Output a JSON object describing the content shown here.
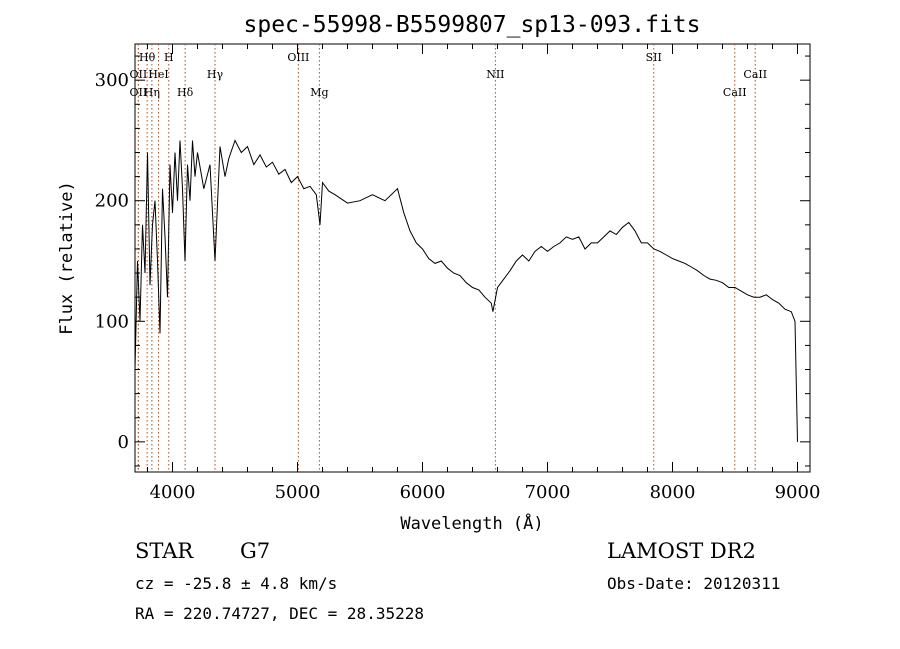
{
  "chart_data": {
    "type": "line",
    "title": "spec-55998-B5599807_sp13-093.fits",
    "xlabel": "Wavelength (Å)",
    "ylabel": "Flux (relative)",
    "xlim": [
      3700,
      9100
    ],
    "ylim": [
      -25,
      330
    ],
    "x_ticks": [
      4000,
      5000,
      6000,
      7000,
      8000,
      9000
    ],
    "y_ticks": [
      0,
      100,
      200,
      300
    ],
    "grid": false,
    "line_color": "#000000",
    "marker_color": "#a0522d",
    "series": [
      {
        "x": [
          3700,
          3720,
          3740,
          3760,
          3780,
          3800,
          3820,
          3840,
          3860,
          3880,
          3900,
          3920,
          3940,
          3960,
          3980,
          4000,
          4020,
          4040,
          4060,
          4080,
          4100,
          4120,
          4140,
          4160,
          4180,
          4200,
          4250,
          4300,
          4340,
          4380,
          4420,
          4450,
          4500,
          4550,
          4600,
          4650,
          4700,
          4750,
          4800,
          4850,
          4900,
          4950,
          5000,
          5050,
          5100,
          5150,
          5180,
          5200,
          5250,
          5300,
          5400,
          5500,
          5600,
          5700,
          5800,
          5850,
          5900,
          5950,
          6000,
          6050,
          6100,
          6150,
          6200,
          6250,
          6300,
          6350,
          6400,
          6450,
          6500,
          6550,
          6563,
          6600,
          6650,
          6700,
          6750,
          6800,
          6850,
          6900,
          6950,
          7000,
          7050,
          7100,
          7150,
          7200,
          7250,
          7300,
          7350,
          7400,
          7450,
          7500,
          7550,
          7600,
          7650,
          7700,
          7750,
          7800,
          7850,
          7900,
          7950,
          8000,
          8050,
          8100,
          8150,
          8200,
          8250,
          8300,
          8350,
          8400,
          8450,
          8500,
          8550,
          8600,
          8650,
          8700,
          8750,
          8800,
          8850,
          8900,
          8950,
          8980,
          9000
        ],
        "y": [
          60,
          150,
          100,
          180,
          140,
          240,
          130,
          180,
          200,
          150,
          90,
          210,
          170,
          120,
          230,
          190,
          240,
          200,
          250,
          210,
          150,
          230,
          200,
          250,
          220,
          240,
          210,
          230,
          150,
          245,
          220,
          235,
          250,
          240,
          245,
          230,
          238,
          228,
          232,
          222,
          226,
          215,
          220,
          210,
          212,
          205,
          180,
          215,
          208,
          205,
          198,
          200,
          205,
          200,
          210,
          190,
          175,
          165,
          160,
          152,
          148,
          150,
          144,
          140,
          138,
          132,
          128,
          126,
          120,
          115,
          108,
          128,
          135,
          142,
          150,
          155,
          150,
          158,
          162,
          158,
          162,
          165,
          170,
          168,
          170,
          160,
          165,
          165,
          170,
          175,
          172,
          178,
          182,
          175,
          165,
          165,
          160,
          158,
          155,
          152,
          150,
          148,
          145,
          142,
          138,
          135,
          134,
          132,
          128,
          128,
          125,
          122,
          120,
          120,
          122,
          118,
          115,
          110,
          108,
          100,
          0
        ]
      }
    ],
    "line_markers": [
      {
        "label": "Hθ",
        "x": 3797,
        "row": 1
      },
      {
        "label": "H",
        "x": 3970,
        "row": 1
      },
      {
        "label": "OII",
        "x": 3727,
        "row": 2
      },
      {
        "label": "HeI",
        "x": 3888,
        "row": 2
      },
      {
        "label": "Hγ",
        "x": 4340,
        "row": 2
      },
      {
        "label": "OIII",
        "x": 5007,
        "row": 1
      },
      {
        "label": "OII",
        "x": 3727,
        "row": 3
      },
      {
        "label": "Hη",
        "x": 3835,
        "row": 3
      },
      {
        "label": "Hδ",
        "x": 4101,
        "row": 3
      },
      {
        "label": "Mg",
        "x": 5175,
        "row": 3
      },
      {
        "label": "NII",
        "x": 6583,
        "row": 2
      },
      {
        "label": "SII",
        "x": 7850,
        "row": 1
      },
      {
        "label": "CaII",
        "x": 8662,
        "row": 2
      },
      {
        "label": "CaII",
        "x": 8498,
        "row": 3
      }
    ]
  },
  "info": {
    "object_class": "STAR",
    "subclass": "G7",
    "survey": "LAMOST DR2",
    "cz": "cz = -25.8 ± 4.8 km/s",
    "obs_date": "Obs-Date: 20120311",
    "coords": "RA = 220.74727, DEC =  28.35228"
  }
}
